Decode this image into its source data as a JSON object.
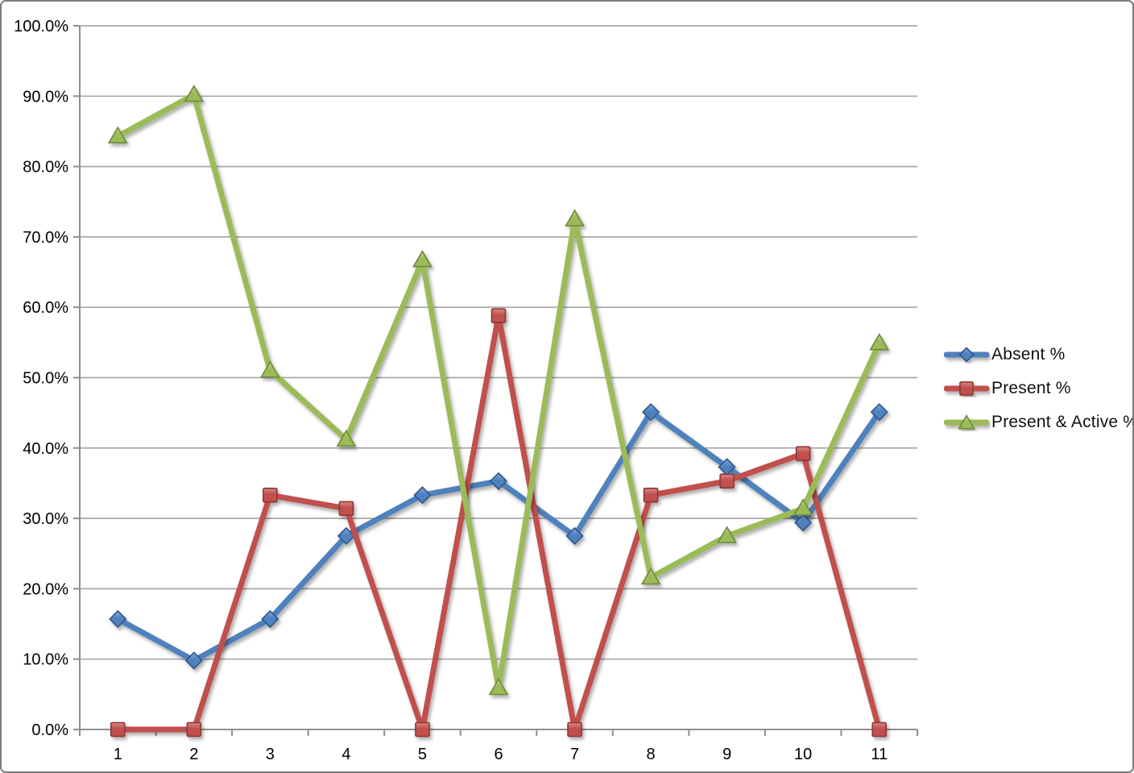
{
  "chart_data": {
    "type": "line",
    "x_labels": [
      "1",
      "2",
      "3",
      "4",
      "5",
      "6",
      "7",
      "8",
      "9",
      "10",
      "11"
    ],
    "y_tick_labels": [
      "0.0%",
      "10.0%",
      "20.0%",
      "30.0%",
      "40.0%",
      "50.0%",
      "60.0%",
      "70.0%",
      "80.0%",
      "90.0%",
      "100.0%"
    ],
    "ylim": [
      0,
      100
    ],
    "ytick_step": 10,
    "grid": true,
    "legend_position": "right",
    "title": "",
    "xlabel": "",
    "ylabel": "",
    "series": [
      {
        "name": "Absent %",
        "marker": "diamond",
        "color": "#4F81BD",
        "color_light": "#82A7DA",
        "color_dark": "#2E578C",
        "values": [
          15.7,
          9.8,
          15.7,
          27.5,
          33.3,
          35.3,
          27.5,
          45.1,
          37.3,
          29.4,
          45.1
        ]
      },
      {
        "name": "Present %",
        "marker": "square",
        "color": "#C0504D",
        "color_light": "#D88785",
        "color_dark": "#8E3634",
        "values": [
          0.0,
          0.0,
          33.3,
          31.4,
          0.0,
          58.8,
          0.0,
          33.3,
          35.3,
          39.2,
          0.0
        ]
      },
      {
        "name": "Present & Active %",
        "marker": "triangle",
        "color": "#9BBB59",
        "color_light": "#BFD48D",
        "color_dark": "#6E8B3D",
        "values": [
          84.3,
          90.2,
          51.0,
          41.2,
          66.7,
          5.9,
          72.5,
          21.6,
          27.5,
          31.4,
          54.9
        ]
      }
    ]
  },
  "style": {
    "gridline_color": "#A8A8A8",
    "axis_color": "#8F8F8F",
    "background": "#FFFFFF"
  }
}
